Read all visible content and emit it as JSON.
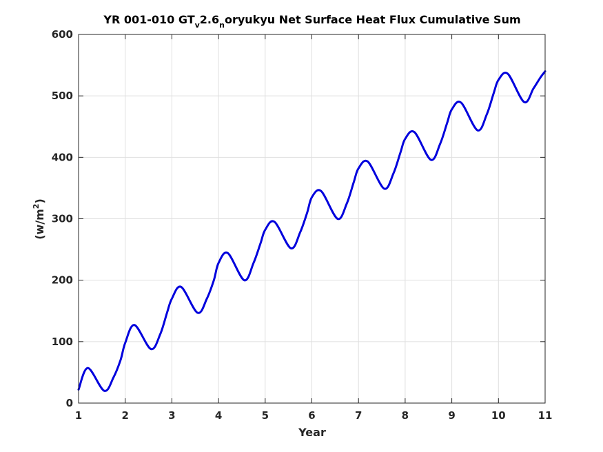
{
  "chart_data": {
    "type": "line",
    "title": {
      "part1": "YR 001-010 GT",
      "sub1": "v",
      "part2": "2.6",
      "sub2": "n",
      "part3": "oryukyu Net Surface Heat Flux  Cumulative Sum"
    },
    "xlabel": "Year",
    "ylabel": {
      "base": "(w/m",
      "sup": "2",
      "close": ")"
    },
    "xlim": [
      1,
      11
    ],
    "ylim": [
      0,
      600
    ],
    "xticks": [
      "1",
      "2",
      "3",
      "4",
      "5",
      "6",
      "7",
      "8",
      "9",
      "10",
      "11"
    ],
    "yticks": [
      "0",
      "100",
      "200",
      "300",
      "400",
      "500",
      "600"
    ],
    "grid": true,
    "series": [
      {
        "color": "#0000dd",
        "x": [
          1.0,
          1.2,
          1.55,
          1.75,
          1.9,
          2.0,
          2.2,
          2.55,
          2.75,
          2.9,
          3.0,
          3.2,
          3.55,
          3.75,
          3.9,
          4.0,
          4.2,
          4.55,
          4.75,
          4.9,
          5.0,
          5.2,
          5.55,
          5.75,
          5.9,
          6.0,
          6.2,
          6.55,
          6.75,
          6.9,
          7.0,
          7.2,
          7.55,
          7.75,
          7.9,
          8.0,
          8.2,
          8.55,
          8.75,
          8.9,
          9.0,
          9.2,
          9.55,
          9.75,
          9.9,
          10.0,
          10.2,
          10.55,
          10.75,
          10.9,
          11.0
        ],
        "y": [
          22,
          57,
          20,
          42,
          70,
          98,
          127,
          88,
          112,
          148,
          170,
          189,
          147,
          170,
          200,
          228,
          244,
          200,
          228,
          260,
          282,
          295,
          252,
          278,
          310,
          335,
          345,
          300,
          325,
          360,
          382,
          393,
          349,
          374,
          408,
          430,
          441,
          396,
          422,
          456,
          478,
          489,
          444,
          470,
          505,
          526,
          536,
          490,
          512,
          530,
          540
        ]
      }
    ]
  }
}
